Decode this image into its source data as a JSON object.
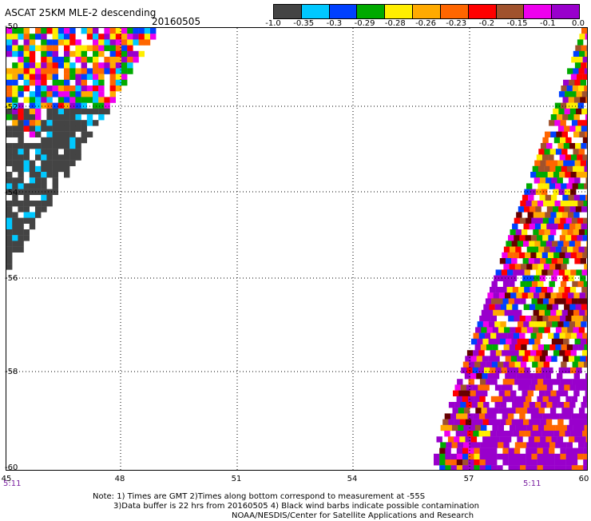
{
  "header": {
    "title": "ASCAT 25KM MLE-2 descending",
    "date": "20160505"
  },
  "legend": {
    "colors": [
      "#444444",
      "#00c8ff",
      "#0040ff",
      "#00aa00",
      "#ffee00",
      "#ffaa00",
      "#ff6600",
      "#ff0000",
      "#a0522d",
      "#ee00ee",
      "#9900cc"
    ],
    "labels": [
      "-1.0",
      "-0.35",
      "-0.3",
      "-0.29",
      "-0.28",
      "-0.26",
      "-0.23",
      "-0.2",
      "-0.15",
      "-0.1",
      "0.0"
    ]
  },
  "axes": {
    "lat_labels": [
      "-50",
      "-52",
      "-54",
      "-56",
      "-58",
      "-60"
    ],
    "lon_labels": [
      "45",
      "48",
      "51",
      "54",
      "57",
      "60"
    ],
    "time_left": "5:11",
    "time_right": "5:11"
  },
  "footer": {
    "line1": "Note: 1) Times are GMT 2)Times along bottom correspond to measurement at -55S",
    "line2": "3)Data buffer is 22 hrs from 20160505 4) Black wind barbs indicate possible contamination",
    "line3": "NOAA/NESDIS/Center for Satellite Applications and Research"
  }
}
